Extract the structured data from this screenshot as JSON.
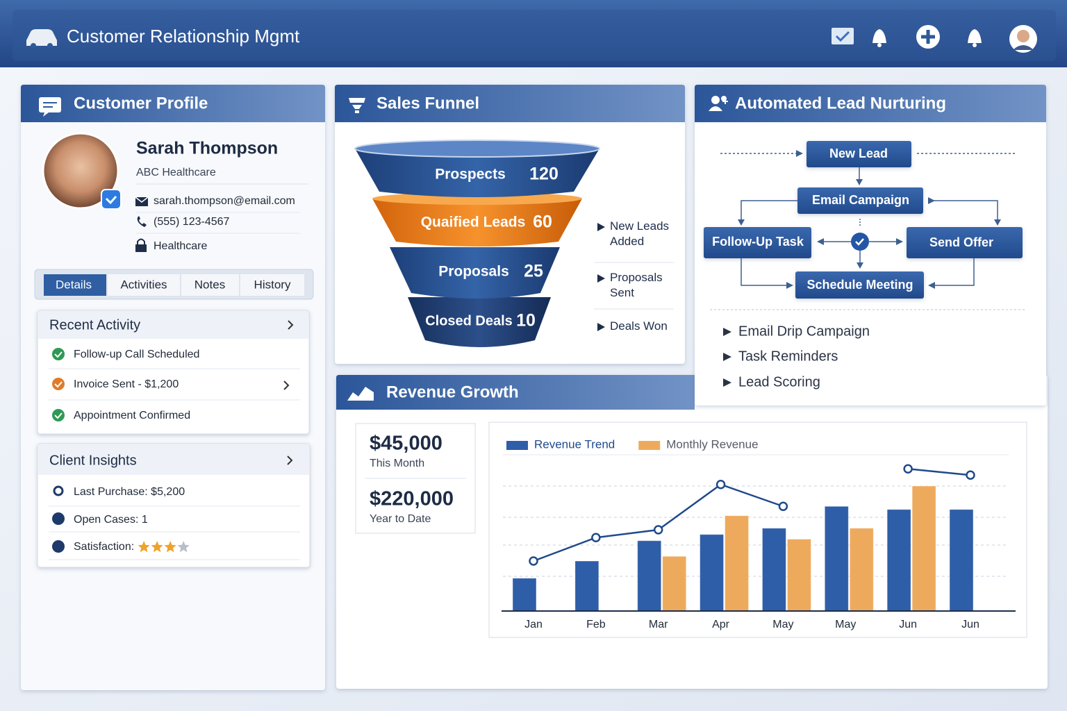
{
  "header": {
    "title": "Customer Relationship Mgmt"
  },
  "profile": {
    "title": "Customer Profile",
    "name": "Sarah Thompson",
    "company": "ABC Healthcare",
    "email": "sarah.thompson@email.com",
    "phone": "(555) 123-4567",
    "industry": "Healthcare",
    "tabs": [
      "Details",
      "Activities",
      "Notes",
      "History"
    ],
    "recent_activity": {
      "title": "Recent Activity",
      "items": [
        "Follow-up Call Scheduled",
        "Invoice Sent - $1,200",
        "Appointment Confirmed"
      ]
    },
    "client_insights": {
      "title": "Client Insights",
      "items": [
        "Last Purchase: $5,200",
        "Open Cases: 1",
        "Satisfaction:"
      ],
      "rating": 3,
      "rating_max": 4
    }
  },
  "sales_funnel": {
    "title": "Sales Funnel",
    "stages": [
      {
        "label": "Prospects",
        "value": 120
      },
      {
        "label": "Quaified Leads",
        "value": 60
      },
      {
        "label": "Proposals",
        "value": 25
      },
      {
        "label": "Closed Deals",
        "value": 10
      }
    ],
    "legend": [
      "New Leads Added",
      "Proposals Sent",
      "Deals Won"
    ]
  },
  "lead_nurturing": {
    "title": "Automated Lead Nurturing",
    "nodes": [
      "New Lead",
      "Email Campaign",
      "Follow-Up Task",
      "Send Offer",
      "Schedule Meeting"
    ],
    "features": [
      "Email Drip Campaign",
      "Task Reminders",
      "Lead Scoring"
    ]
  },
  "revenue": {
    "title": "Revenue Growth",
    "stats": [
      {
        "value": "$45,000",
        "label": "This Month"
      },
      {
        "value": "$220,000",
        "label": "Year to Date"
      }
    ]
  },
  "chart_data": {
    "type": "bar",
    "categories": [
      "Jan",
      "Feb",
      "Mar",
      "Apr",
      "May",
      "May",
      "Jun",
      "Jun"
    ],
    "ylim": [
      0,
      100
    ],
    "series": [
      {
        "name": "Revenue Trend",
        "color": "#2f5ea8",
        "values": [
          21,
          32,
          45,
          49,
          53,
          67,
          65,
          65
        ]
      },
      {
        "name": "Monthly Revenue",
        "color": "#eeaa5c",
        "values": [
          null,
          null,
          35,
          61,
          46,
          53,
          80,
          null
        ]
      },
      {
        "type": "line",
        "color": "#1f4a8a",
        "values": [
          32,
          47,
          52,
          81,
          67,
          null,
          91,
          87
        ]
      }
    ]
  }
}
